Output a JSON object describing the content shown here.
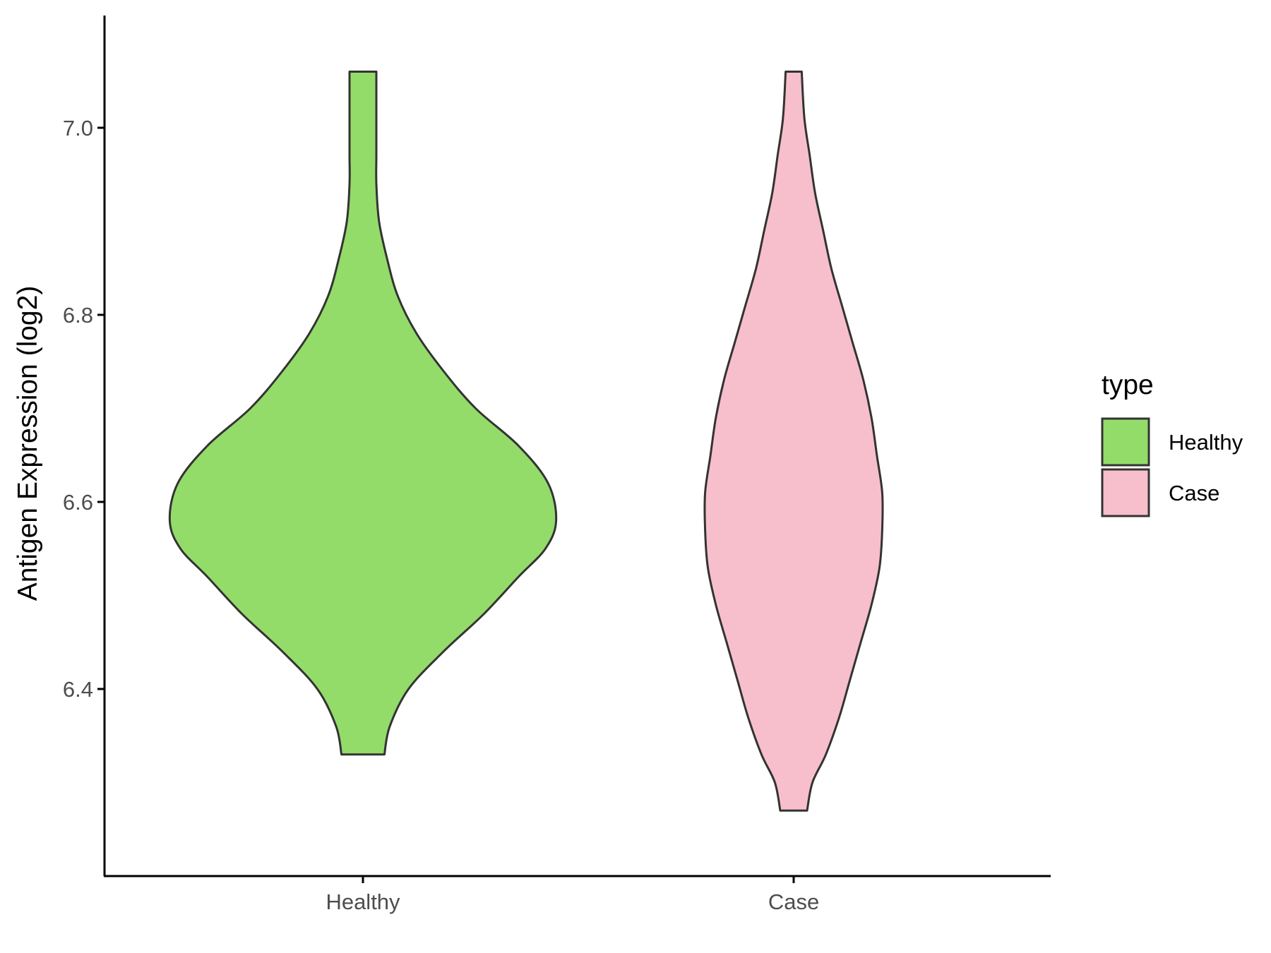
{
  "chart_data": {
    "type": "violin",
    "title": "",
    "xlabel": "",
    "ylabel": "Antigen Expression (log2)",
    "ylim": [
      6.2,
      7.12
    ],
    "yticks": [
      "6.4",
      "6.6",
      "6.8",
      "7.0"
    ],
    "categories": [
      "Healthy",
      "Case"
    ],
    "colors": {
      "Healthy": "#93dc6a",
      "Case": "#f7bfcb",
      "outline": "#333333"
    },
    "legend": {
      "title": "type",
      "position": "right",
      "entries": [
        "Healthy",
        "Case"
      ]
    },
    "grid": false,
    "series": [
      {
        "name": "Healthy",
        "min": 6.33,
        "max": 7.06,
        "density_profile": [
          [
            6.33,
            0.08
          ],
          [
            6.36,
            0.1
          ],
          [
            6.4,
            0.17
          ],
          [
            6.44,
            0.3
          ],
          [
            6.48,
            0.45
          ],
          [
            6.52,
            0.58
          ],
          [
            6.55,
            0.68
          ],
          [
            6.58,
            0.72
          ],
          [
            6.62,
            0.69
          ],
          [
            6.66,
            0.58
          ],
          [
            6.7,
            0.42
          ],
          [
            6.74,
            0.3
          ],
          [
            6.78,
            0.2
          ],
          [
            6.82,
            0.13
          ],
          [
            6.86,
            0.09
          ],
          [
            6.9,
            0.06
          ],
          [
            6.94,
            0.05
          ],
          [
            6.97,
            0.05
          ],
          [
            7.0,
            0.05
          ],
          [
            7.03,
            0.05
          ],
          [
            7.06,
            0.05
          ]
        ]
      },
      {
        "name": "Case",
        "min": 6.27,
        "max": 7.06,
        "density_profile": [
          [
            6.27,
            0.05
          ],
          [
            6.3,
            0.07
          ],
          [
            6.33,
            0.12
          ],
          [
            6.37,
            0.17
          ],
          [
            6.41,
            0.21
          ],
          [
            6.45,
            0.25
          ],
          [
            6.49,
            0.29
          ],
          [
            6.53,
            0.32
          ],
          [
            6.57,
            0.33
          ],
          [
            6.61,
            0.33
          ],
          [
            6.65,
            0.31
          ],
          [
            6.69,
            0.29
          ],
          [
            6.73,
            0.26
          ],
          [
            6.77,
            0.22
          ],
          [
            6.81,
            0.18
          ],
          [
            6.85,
            0.14
          ],
          [
            6.89,
            0.11
          ],
          [
            6.93,
            0.08
          ],
          [
            6.97,
            0.06
          ],
          [
            7.01,
            0.04
          ],
          [
            7.06,
            0.03
          ]
        ]
      }
    ]
  }
}
